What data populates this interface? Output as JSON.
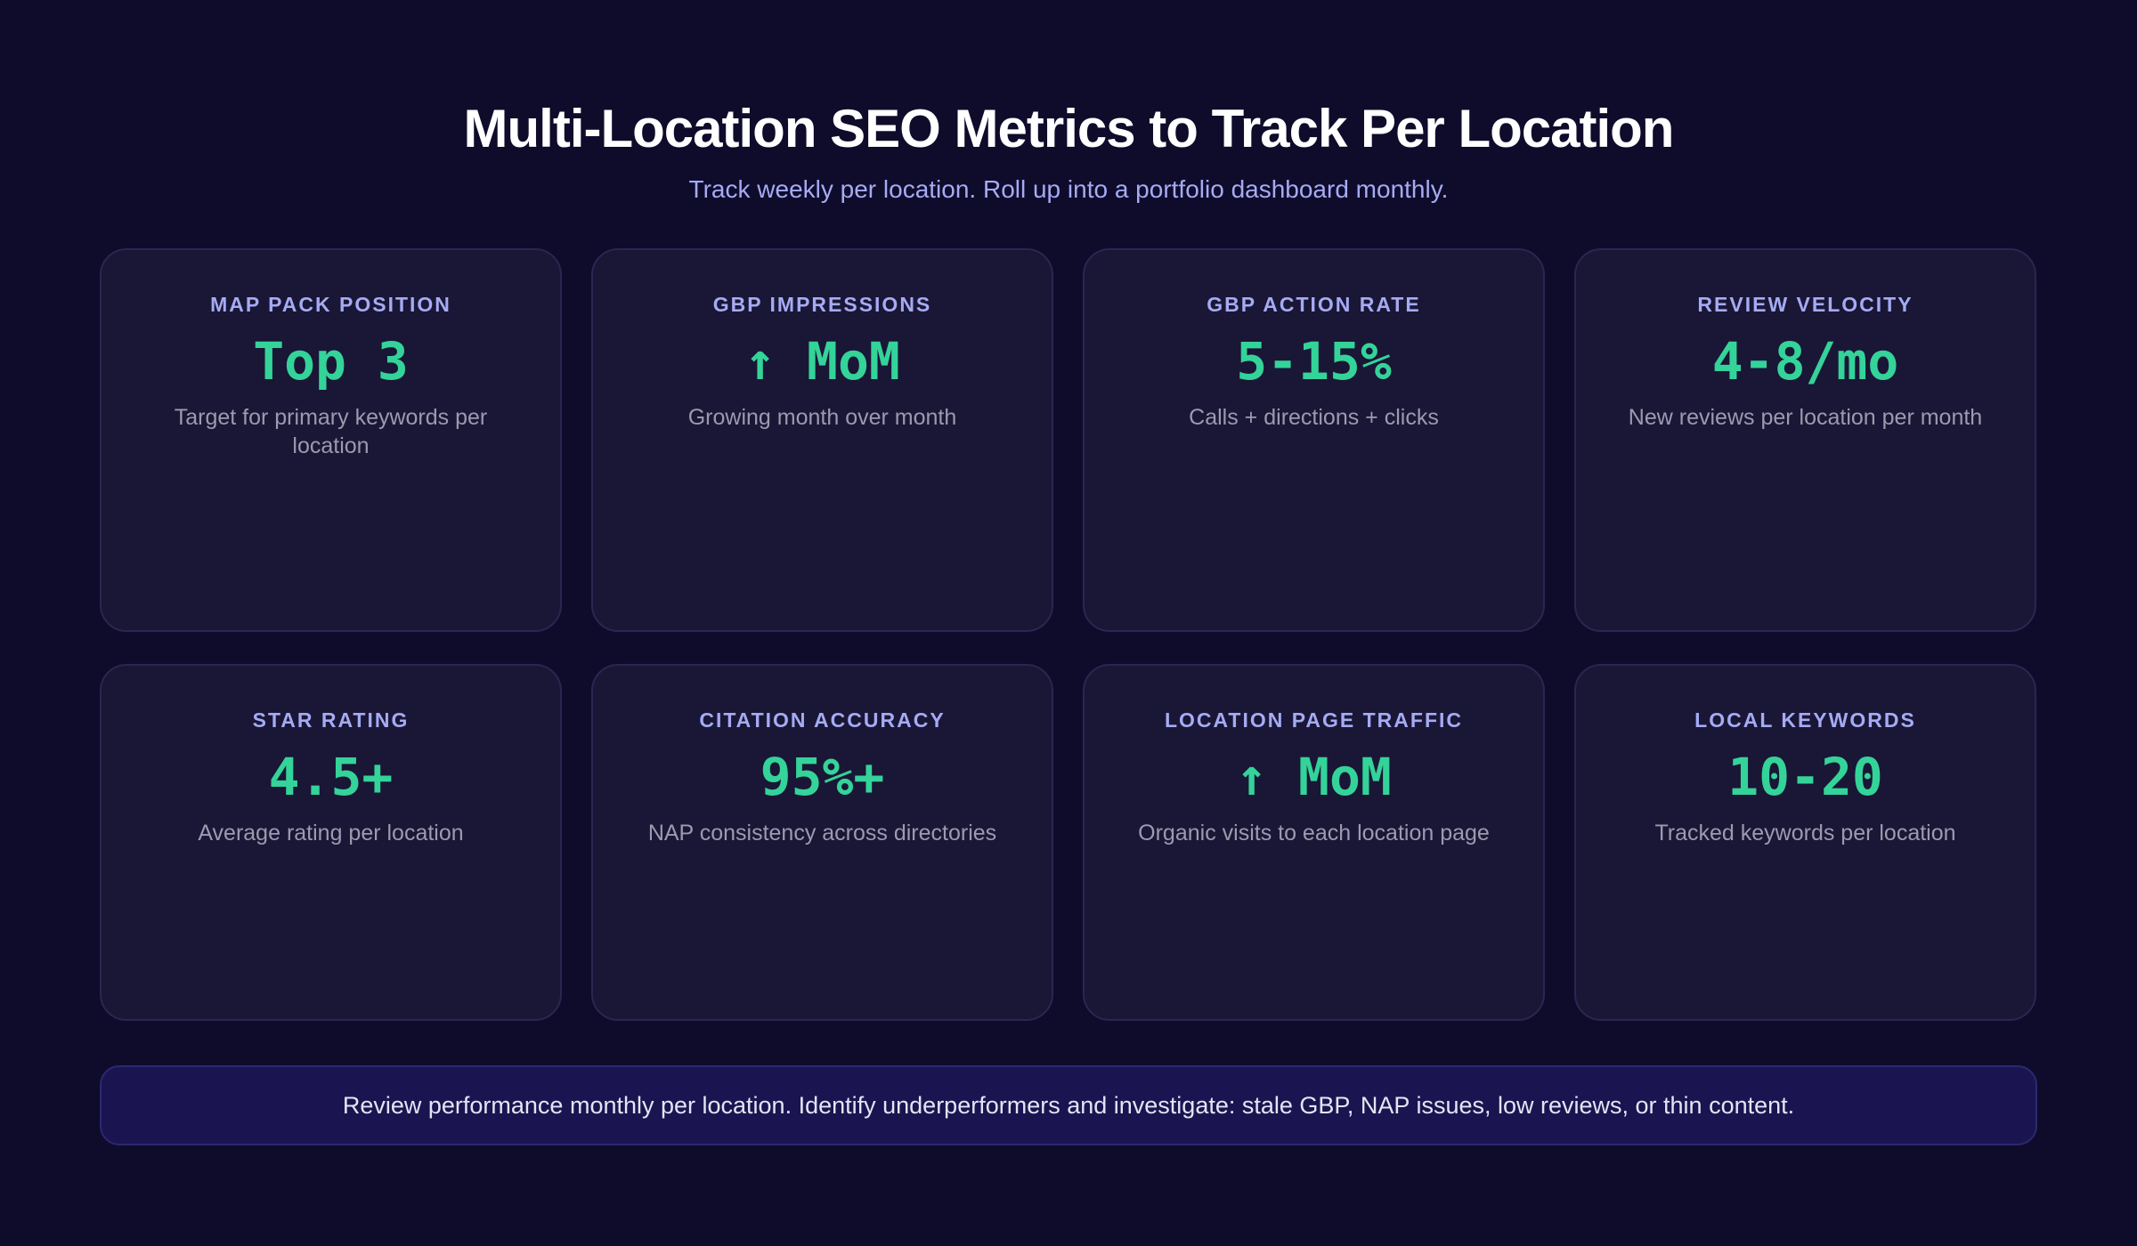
{
  "header": {
    "title": "Multi-Location SEO Metrics to Track Per Location",
    "subtitle": "Track weekly per location. Roll up into a portfolio dashboard monthly."
  },
  "cards": [
    {
      "label": "MAP PACK POSITION",
      "value": "Top 3",
      "description": "Target for primary keywords per location"
    },
    {
      "label": "GBP IMPRESSIONS",
      "value": "↑ MoM",
      "description": "Growing month over month"
    },
    {
      "label": "GBP ACTION RATE",
      "value": "5-15%",
      "description": "Calls + directions + clicks"
    },
    {
      "label": "REVIEW VELOCITY",
      "value": "4-8/mo",
      "description": "New reviews per location per month"
    },
    {
      "label": "STAR RATING",
      "value": "4.5+",
      "description": "Average rating per location"
    },
    {
      "label": "CITATION ACCURACY",
      "value": "95%+",
      "description": "NAP consistency across directories"
    },
    {
      "label": "LOCATION PAGE TRAFFIC",
      "value": "↑ MoM",
      "description": "Organic visits to each location page"
    },
    {
      "label": "LOCAL KEYWORDS",
      "value": "10-20",
      "description": "Tracked keywords per location"
    }
  ],
  "footer": {
    "text": "Review performance monthly per location. Identify underperformers and investigate: stale GBP, NAP issues, low reviews, or thin content."
  }
}
